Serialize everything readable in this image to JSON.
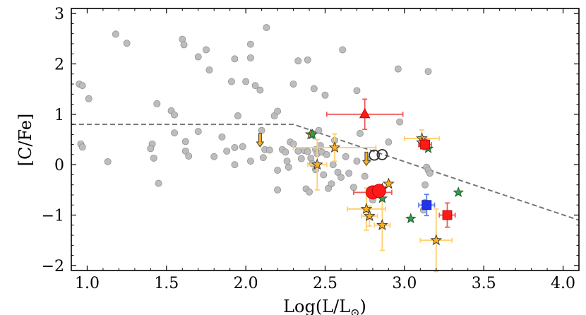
{
  "chart_data": {
    "type": "scatter",
    "title": "",
    "xlabel": "Log(L/L",
    "xlabel_sub": "⊙",
    "xlabel_close": ")",
    "ylabel": "[C/Fe]",
    "xlim": [
      0.9,
      4.1
    ],
    "ylim": [
      -2.1,
      3.1
    ],
    "xticks": [
      1.0,
      1.5,
      2.0,
      2.5,
      3.0,
      3.5,
      4.0
    ],
    "yticks": [
      -2,
      -1,
      0,
      1,
      2,
      3
    ],
    "xtick_labels": [
      "1.0",
      "1.5",
      "2.0",
      "2.5",
      "3.0",
      "3.5",
      "4.0"
    ],
    "ytick_labels": [
      "−2",
      "−1",
      "0",
      "1",
      "2",
      "3"
    ],
    "threshold_line": {
      "points": [
        [
          0.9,
          0.8
        ],
        [
          2.3,
          0.8
        ],
        [
          4.1,
          -1.1
        ]
      ],
      "color": "#777777"
    },
    "colors": {
      "gray": "#bdbdbd",
      "red": "#ff1a1a",
      "red_err": "#ee5a5a",
      "orange": "#ffad1f",
      "orange_err": "#ffcf70",
      "green": "#2fa04a",
      "blue": "#2233ee",
      "blue_err": "#5f7ff0"
    },
    "gray_points": [
      [
        0.95,
        1.6
      ],
      [
        0.97,
        1.57
      ],
      [
        1.01,
        1.31
      ],
      [
        0.96,
        0.41
      ],
      [
        0.97,
        0.35
      ],
      [
        1.18,
        2.59
      ],
      [
        1.25,
        2.41
      ],
      [
        1.13,
        0.06
      ],
      [
        1.44,
        1.21
      ],
      [
        1.41,
        0.41
      ],
      [
        1.4,
        0.32
      ],
      [
        1.42,
        0.13
      ],
      [
        1.45,
        -0.37
      ],
      [
        1.53,
        1.07
      ],
      [
        1.55,
        0.99
      ],
      [
        1.55,
        0.63
      ],
      [
        1.6,
        2.49
      ],
      [
        1.61,
        2.38
      ],
      [
        1.62,
        0.46
      ],
      [
        1.62,
        0.27
      ],
      [
        1.64,
        0.17
      ],
      [
        1.7,
        2.14
      ],
      [
        1.7,
        0.66
      ],
      [
        1.75,
        2.28
      ],
      [
        1.77,
        1.88
      ],
      [
        1.8,
        0.16
      ],
      [
        1.85,
        0.55
      ],
      [
        1.88,
        0.27
      ],
      [
        1.91,
        1.65
      ],
      [
        1.93,
        2.1
      ],
      [
        1.93,
        0.34
      ],
      [
        1.93,
        0.0
      ],
      [
        1.95,
        0.97
      ],
      [
        1.98,
        0.36
      ],
      [
        2.0,
        1.65
      ],
      [
        2.03,
        2.39
      ],
      [
        2.03,
        2.12
      ],
      [
        2.03,
        0.07
      ],
      [
        2.06,
        1.57
      ],
      [
        2.09,
        1.48
      ],
      [
        2.1,
        0.68
      ],
      [
        2.11,
        0.14
      ],
      [
        2.13,
        2.72
      ],
      [
        2.12,
        0.3
      ],
      [
        2.15,
        0.29
      ],
      [
        2.18,
        0.97
      ],
      [
        2.2,
        1.06
      ],
      [
        2.2,
        -0.11
      ],
      [
        2.2,
        -0.5
      ],
      [
        2.23,
        0.3
      ],
      [
        2.25,
        0.25
      ],
      [
        2.26,
        0.07
      ],
      [
        2.27,
        -0.05
      ],
      [
        2.28,
        0.45
      ],
      [
        2.3,
        1.6
      ],
      [
        2.3,
        0.41
      ],
      [
        2.33,
        2.06
      ],
      [
        2.33,
        0.27
      ],
      [
        2.35,
        0.12
      ],
      [
        2.37,
        0.28
      ],
      [
        2.38,
        -0.48
      ],
      [
        2.39,
        2.08
      ],
      [
        2.39,
        0.26
      ],
      [
        2.4,
        -0.54
      ],
      [
        2.41,
        0.13
      ],
      [
        2.42,
        0.02
      ],
      [
        2.43,
        1.51
      ],
      [
        2.44,
        0.3
      ],
      [
        2.44,
        -0.1
      ],
      [
        2.45,
        0.22
      ],
      [
        2.46,
        0.68
      ],
      [
        2.47,
        0.38
      ],
      [
        2.48,
        0.25
      ],
      [
        2.49,
        -0.2
      ],
      [
        2.5,
        1.38
      ],
      [
        2.51,
        0.2
      ],
      [
        2.52,
        -0.47
      ],
      [
        2.54,
        -0.38
      ],
      [
        2.55,
        0.0
      ],
      [
        2.56,
        0.48
      ],
      [
        2.58,
        -0.15
      ],
      [
        2.6,
        -0.25
      ],
      [
        2.61,
        2.28
      ],
      [
        2.63,
        0.16
      ],
      [
        2.65,
        -0.17
      ],
      [
        2.68,
        -0.45
      ],
      [
        2.7,
        1.47
      ],
      [
        2.7,
        0.07
      ],
      [
        2.72,
        0.62
      ],
      [
        2.75,
        -0.23
      ],
      [
        2.77,
        0.1
      ],
      [
        2.8,
        -0.7
      ],
      [
        2.85,
        -0.58
      ],
      [
        2.9,
        0.45
      ],
      [
        2.96,
        1.9
      ],
      [
        2.97,
        0.85
      ],
      [
        3.12,
        -0.9
      ],
      [
        3.13,
        -0.75
      ],
      [
        3.13,
        -0.4
      ],
      [
        3.14,
        -0.05
      ],
      [
        3.15,
        -0.11
      ],
      [
        3.15,
        1.85
      ],
      [
        3.16,
        -0.17
      ]
    ],
    "orange_stars": [
      {
        "x": 2.41,
        "y": 0.6
      },
      {
        "x": 2.45,
        "y": 0.0,
        "xerr": 0.06,
        "yerr": 0.5
      },
      {
        "x": 2.56,
        "y": 0.34,
        "xerr": 0.26,
        "yerr": 0.27
      },
      {
        "x": 2.76,
        "y": -0.88,
        "xerr": 0.12,
        "yerr": 0.42
      },
      {
        "x": 2.78,
        "y": -1.02,
        "xerr": 0.05,
        "yerr": 0.2
      },
      {
        "x": 2.83,
        "y": -0.56
      },
      {
        "x": 2.86,
        "y": -1.2,
        "xerr": 0.05,
        "yerr": 0.5
      },
      {
        "x": 2.86,
        "y": -0.48
      },
      {
        "x": 2.9,
        "y": -0.38
      },
      {
        "x": 3.11,
        "y": 0.52,
        "xerr": 0.11,
        "yerr": 0.17
      },
      {
        "x": 3.11,
        "y": 0.44
      },
      {
        "x": 3.2,
        "y": -1.5,
        "xerr": 0.1,
        "yerr": 0.62
      }
    ],
    "green_stars": [
      {
        "x": 2.42,
        "y": 0.6
      },
      {
        "x": 2.86,
        "y": -0.67
      },
      {
        "x": 3.04,
        "y": -1.07
      },
      {
        "x": 3.15,
        "y": 0.32
      },
      {
        "x": 3.34,
        "y": -0.55
      }
    ],
    "red_circles": [
      {
        "x": 2.8,
        "y": -0.55,
        "xerr": 0.12
      },
      {
        "x": 2.84,
        "y": -0.52
      }
    ],
    "open_circles": [
      {
        "x": 2.81,
        "y": 0.19
      },
      {
        "x": 2.86,
        "y": 0.2
      }
    ],
    "red_triangle": {
      "x": 2.75,
      "y": 1.0,
      "xerr": 0.24,
      "yerr": 0.3
    },
    "red_squares": [
      {
        "x": 3.13,
        "y": 0.4,
        "xerr": 0.04,
        "yerr": 0.1
      },
      {
        "x": 3.27,
        "y": -1.0,
        "xerr": 0.05,
        "yerr": 0.24
      }
    ],
    "blue_square": {
      "x": 3.14,
      "y": -0.8,
      "xerr": 0.05,
      "yerr": 0.21
    },
    "upper_limits": [
      {
        "x": 2.09,
        "y": 0.62
      },
      {
        "x": 2.76,
        "y": 0.25
      }
    ]
  }
}
